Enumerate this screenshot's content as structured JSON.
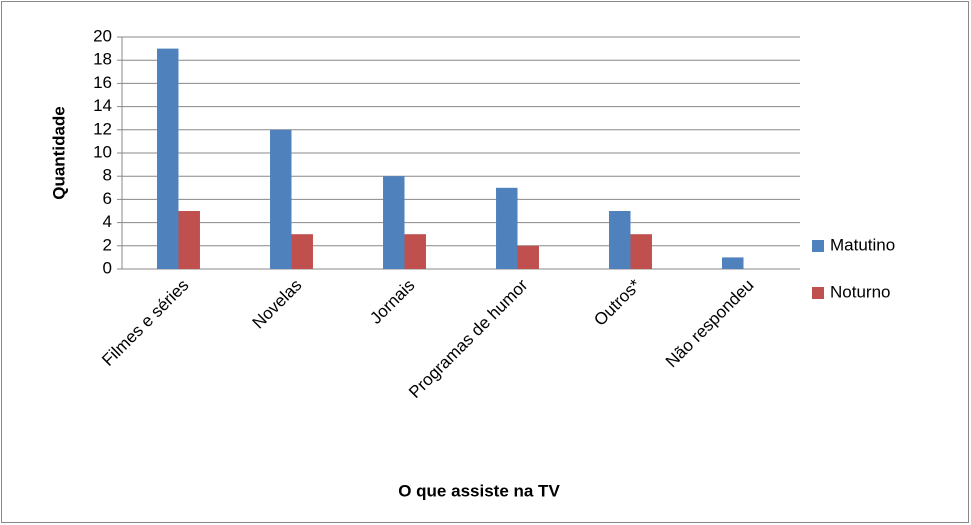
{
  "chart_data": {
    "type": "bar",
    "x_label": "O que assiste na TV",
    "y_label": "Quantidade",
    "categories": [
      "Filmes e séries",
      "Novelas",
      "Jornais",
      "Programas de humor",
      "Outros*",
      "Não respondeu"
    ],
    "series": [
      {
        "name": "Matutino",
        "color": "#4f81bd",
        "values": [
          19,
          12,
          8,
          7,
          5,
          1
        ]
      },
      {
        "name": "Noturno",
        "color": "#c0504d",
        "values": [
          5,
          3,
          3,
          2,
          3,
          0
        ]
      }
    ],
    "ylim": [
      0,
      20
    ],
    "yticks": [
      0,
      2,
      4,
      6,
      8,
      10,
      12,
      14,
      16,
      18,
      20
    ],
    "grid": true,
    "legend": "right"
  }
}
